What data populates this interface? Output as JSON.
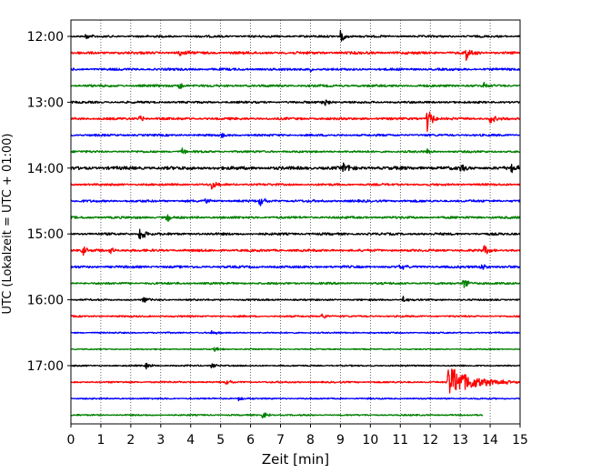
{
  "chart_data": {
    "type": "line",
    "xlabel": "Zeit  [min]",
    "ylabel": "UTC (Lokalzeit = UTC + 01:00)",
    "xlim": [
      0,
      15
    ],
    "x_ticks": [
      0,
      1,
      2,
      3,
      4,
      5,
      6,
      7,
      8,
      9,
      10,
      11,
      12,
      13,
      14,
      15
    ],
    "x_grid": "dotted",
    "y_ticks": [
      "12:00",
      "13:00",
      "14:00",
      "15:00",
      "16:00",
      "17:00"
    ],
    "series_colors": [
      "#000000",
      "#ff0000",
      "#0000ff",
      "#008000"
    ],
    "traces": [
      {
        "start": "12:00",
        "color": "#000000",
        "noise": 0.9,
        "events": [
          {
            "t": 9.0,
            "amp": 7
          },
          {
            "t": 0.5,
            "amp": 3
          }
        ]
      },
      {
        "start": "12:15",
        "color": "#ff0000",
        "noise": 1.1,
        "events": [
          {
            "t": 3.6,
            "amp": 6
          },
          {
            "t": 13.2,
            "amp": 9
          }
        ]
      },
      {
        "start": "12:30",
        "color": "#0000ff",
        "noise": 1.0,
        "events": [
          {
            "t": 8.0,
            "amp": 3
          }
        ]
      },
      {
        "start": "12:45",
        "color": "#008000",
        "noise": 1.0,
        "events": [
          {
            "t": 3.6,
            "amp": 5
          },
          {
            "t": 13.8,
            "amp": 4
          }
        ]
      },
      {
        "start": "13:00",
        "color": "#000000",
        "noise": 0.9,
        "events": [
          {
            "t": 8.4,
            "amp": 9
          }
        ]
      },
      {
        "start": "13:15",
        "color": "#ff0000",
        "noise": 1.0,
        "events": [
          {
            "t": 2.3,
            "amp": 5
          },
          {
            "t": 11.9,
            "amp": 16
          },
          {
            "t": 14.0,
            "amp": 6
          }
        ]
      },
      {
        "start": "13:30",
        "color": "#0000ff",
        "noise": 0.9,
        "events": [
          {
            "t": 5.0,
            "amp": 3
          }
        ]
      },
      {
        "start": "13:45",
        "color": "#008000",
        "noise": 0.9,
        "events": [
          {
            "t": 3.7,
            "amp": 4
          },
          {
            "t": 11.9,
            "amp": 3
          }
        ]
      },
      {
        "start": "14:00",
        "color": "#000000",
        "noise": 1.4,
        "events": [
          {
            "t": 9.1,
            "amp": 7
          },
          {
            "t": 13.0,
            "amp": 4
          },
          {
            "t": 14.7,
            "amp": 6
          }
        ]
      },
      {
        "start": "14:15",
        "color": "#ff0000",
        "noise": 0.9,
        "events": [
          {
            "t": 4.7,
            "amp": 8
          }
        ]
      },
      {
        "start": "14:30",
        "color": "#0000ff",
        "noise": 1.0,
        "events": [
          {
            "t": 6.3,
            "amp": 6
          },
          {
            "t": 4.5,
            "amp": 3
          }
        ]
      },
      {
        "start": "14:45",
        "color": "#008000",
        "noise": 1.0,
        "events": [
          {
            "t": 3.2,
            "amp": 6
          }
        ]
      },
      {
        "start": "15:00",
        "color": "#000000",
        "noise": 1.0,
        "events": [
          {
            "t": 2.3,
            "amp": 9
          }
        ]
      },
      {
        "start": "15:15",
        "color": "#ff0000",
        "noise": 1.0,
        "events": [
          {
            "t": 0.4,
            "amp": 5
          },
          {
            "t": 1.3,
            "amp": 5
          },
          {
            "t": 13.8,
            "amp": 6
          }
        ]
      },
      {
        "start": "15:30",
        "color": "#0000ff",
        "noise": 1.0,
        "events": [
          {
            "t": 13.7,
            "amp": 5
          },
          {
            "t": 11.0,
            "amp": 3
          }
        ]
      },
      {
        "start": "15:45",
        "color": "#008000",
        "noise": 0.9,
        "events": [
          {
            "t": 13.1,
            "amp": 8
          }
        ]
      },
      {
        "start": "16:00",
        "color": "#000000",
        "noise": 0.7,
        "events": [
          {
            "t": 2.4,
            "amp": 4
          },
          {
            "t": 11.1,
            "amp": 4
          }
        ]
      },
      {
        "start": "16:15",
        "color": "#ff0000",
        "noise": 0.7,
        "events": [
          {
            "t": 8.4,
            "amp": 4
          }
        ]
      },
      {
        "start": "16:30",
        "color": "#0000ff",
        "noise": 0.6,
        "events": [
          {
            "t": 4.7,
            "amp": 3
          }
        ]
      },
      {
        "start": "16:45",
        "color": "#008000",
        "noise": 0.5,
        "events": [
          {
            "t": 4.8,
            "amp": 3
          }
        ]
      },
      {
        "start": "17:00",
        "color": "#000000",
        "noise": 0.6,
        "events": [
          {
            "t": 2.5,
            "amp": 4
          },
          {
            "t": 4.7,
            "amp": 3
          }
        ]
      },
      {
        "start": "17:15",
        "color": "#ff0000",
        "noise": 0.7,
        "events": [
          {
            "t": 5.2,
            "amp": 3
          },
          {
            "t": 12.6,
            "amp": 18,
            "decay": 0.8
          }
        ]
      },
      {
        "start": "17:30",
        "color": "#0000ff",
        "noise": 0.6,
        "events": [
          {
            "t": 5.6,
            "amp": 3
          }
        ]
      },
      {
        "start": "17:45",
        "color": "#008000",
        "noise": 0.6,
        "end": 13.75,
        "events": [
          {
            "t": 6.4,
            "amp": 4
          }
        ]
      }
    ]
  }
}
